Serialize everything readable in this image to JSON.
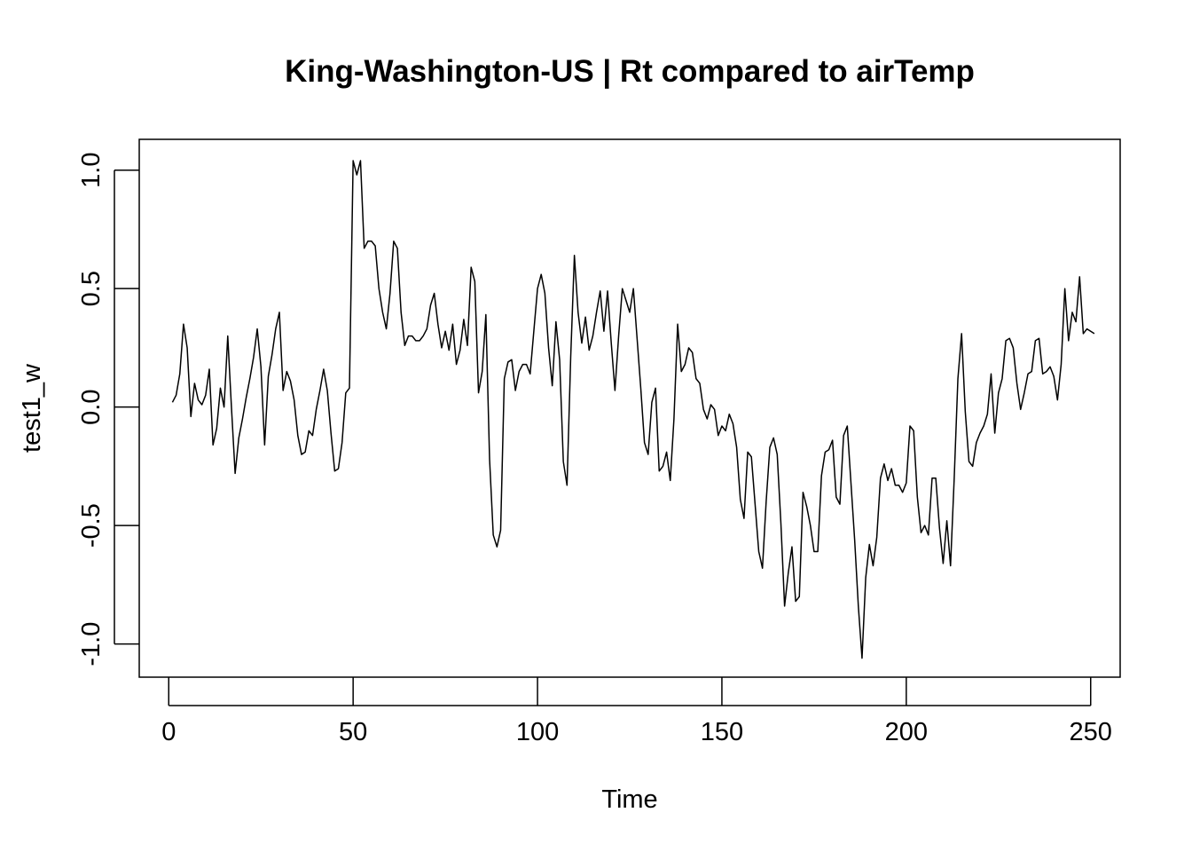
{
  "chart_data": {
    "type": "line",
    "title": "King-Washington-US | Rt compared to airTemp",
    "xlabel": "Time",
    "ylabel": "test1_w",
    "xlim": [
      -8,
      258
    ],
    "ylim": [
      -1.14,
      1.13
    ],
    "xticks": [
      0,
      50,
      100,
      150,
      200,
      250
    ],
    "xtick_labels": [
      "0",
      "50",
      "100",
      "150",
      "200",
      "250"
    ],
    "yticks": [
      -1.0,
      -0.5,
      0.0,
      0.5,
      1.0
    ],
    "ytick_labels": [
      "-1.0",
      "-0.5",
      "0.0",
      "0.5",
      "1.0"
    ],
    "grid": false,
    "series": [
      {
        "x_start": 1,
        "values": [
          0.02,
          0.05,
          0.14,
          0.35,
          0.25,
          -0.04,
          0.1,
          0.03,
          0.01,
          0.05,
          0.16,
          -0.16,
          -0.09,
          0.08,
          0.0,
          0.3,
          0.0,
          -0.28,
          -0.13,
          -0.05,
          0.04,
          0.12,
          0.21,
          0.33,
          0.17,
          -0.16,
          0.13,
          0.22,
          0.33,
          0.4,
          0.07,
          0.15,
          0.11,
          0.03,
          -0.12,
          -0.2,
          -0.19,
          -0.1,
          -0.12,
          -0.01,
          0.07,
          0.16,
          0.07,
          -0.11,
          -0.27,
          -0.26,
          -0.15,
          0.06,
          0.08,
          1.04,
          0.98,
          1.04,
          0.67,
          0.7,
          0.7,
          0.68,
          0.5,
          0.4,
          0.33,
          0.48,
          0.7,
          0.67,
          0.4,
          0.26,
          0.3,
          0.3,
          0.28,
          0.28,
          0.3,
          0.33,
          0.43,
          0.48,
          0.35,
          0.25,
          0.32,
          0.24,
          0.35,
          0.18,
          0.24,
          0.37,
          0.26,
          0.59,
          0.53,
          0.06,
          0.15,
          0.39,
          -0.22,
          -0.54,
          -0.59,
          -0.52,
          0.12,
          0.19,
          0.2,
          0.07,
          0.15,
          0.18,
          0.18,
          0.14,
          0.32,
          0.5,
          0.56,
          0.48,
          0.25,
          0.09,
          0.36,
          0.2,
          -0.23,
          -0.33,
          0.21,
          0.64,
          0.4,
          0.27,
          0.38,
          0.24,
          0.3,
          0.4,
          0.49,
          0.32,
          0.49,
          0.27,
          0.07,
          0.3,
          0.5,
          0.45,
          0.4,
          0.5,
          0.29,
          0.08,
          -0.15,
          -0.2,
          0.02,
          0.08,
          -0.27,
          -0.25,
          -0.19,
          -0.31,
          -0.05,
          0.35,
          0.15,
          0.18,
          0.25,
          0.23,
          0.12,
          0.1,
          -0.01,
          -0.05,
          0.01,
          -0.01,
          -0.12,
          -0.08,
          -0.1,
          -0.03,
          -0.07,
          -0.17,
          -0.39,
          -0.47,
          -0.19,
          -0.21,
          -0.41,
          -0.61,
          -0.68,
          -0.4,
          -0.17,
          -0.13,
          -0.2,
          -0.49,
          -0.84,
          -0.7,
          -0.59,
          -0.82,
          -0.8,
          -0.36,
          -0.42,
          -0.5,
          -0.61,
          -0.61,
          -0.29,
          -0.19,
          -0.18,
          -0.14,
          -0.38,
          -0.41,
          -0.12,
          -0.08,
          -0.32,
          -0.56,
          -0.84,
          -1.06,
          -0.72,
          -0.58,
          -0.67,
          -0.55,
          -0.3,
          -0.24,
          -0.31,
          -0.26,
          -0.33,
          -0.33,
          -0.36,
          -0.32,
          -0.08,
          -0.1,
          -0.38,
          -0.53,
          -0.5,
          -0.54,
          -0.3,
          -0.3,
          -0.51,
          -0.66,
          -0.48,
          -0.67,
          -0.3,
          0.12,
          0.31,
          -0.02,
          -0.23,
          -0.25,
          -0.15,
          -0.11,
          -0.08,
          -0.03,
          0.14,
          -0.11,
          0.06,
          0.12,
          0.28,
          0.29,
          0.25,
          0.1,
          -0.01,
          0.06,
          0.14,
          0.15,
          0.28,
          0.29,
          0.14,
          0.15,
          0.17,
          0.13,
          0.03,
          0.18,
          0.5,
          0.28,
          0.4,
          0.36,
          0.55,
          0.31,
          0.33,
          0.32,
          0.31
        ]
      }
    ]
  }
}
